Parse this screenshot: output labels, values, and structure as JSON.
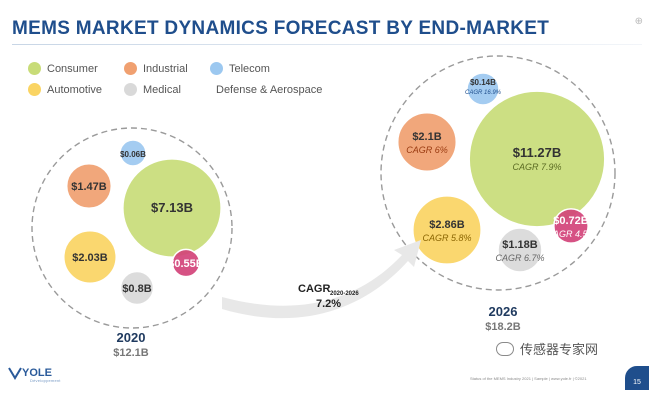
{
  "title": "MEMS MARKET DYNAMICS FORECAST BY END-MARKET",
  "legend": [
    {
      "name": "Consumer",
      "color": "#c8dc78"
    },
    {
      "name": "Industrial",
      "color": "#f0a070"
    },
    {
      "name": "Telecom",
      "color": "#9cc8f0"
    },
    {
      "name": "Automotive",
      "color": "#fad463"
    },
    {
      "name": "Medical",
      "color": "#d9d9d9"
    },
    {
      "name": "Defense & Aerospace",
      "color": "#d3437a"
    }
  ],
  "chart_data": {
    "type": "bubble",
    "title": "MEMS MARKET DYNAMICS FORECAST BY END-MARKET",
    "groups": [
      {
        "year": "2020",
        "total": "$12.1B",
        "bubbles": [
          {
            "segment": "Consumer",
            "value_label": "$7.13B",
            "value": 7.13,
            "cagr": ""
          },
          {
            "segment": "Industrial",
            "value_label": "$1.47B",
            "value": 1.47,
            "cagr": ""
          },
          {
            "segment": "Telecom",
            "value_label": "$0.06B",
            "value": 0.06,
            "cagr": ""
          },
          {
            "segment": "Automotive",
            "value_label": "$2.03B",
            "value": 2.03,
            "cagr": ""
          },
          {
            "segment": "Medical",
            "value_label": "$0.8B",
            "value": 0.8,
            "cagr": ""
          },
          {
            "segment": "Defense & Aerospace",
            "value_label": "$0.55B",
            "value": 0.55,
            "cagr": ""
          }
        ]
      },
      {
        "year": "2026",
        "total": "$18.2B",
        "bubbles": [
          {
            "segment": "Consumer",
            "value_label": "$11.27B",
            "value": 11.27,
            "cagr": "CAGR 7.9%"
          },
          {
            "segment": "Industrial",
            "value_label": "$2.1B",
            "value": 2.1,
            "cagr": "CAGR 6%"
          },
          {
            "segment": "Telecom",
            "value_label": "$0.14B",
            "value": 0.14,
            "cagr": "CAGR 16.9%"
          },
          {
            "segment": "Automotive",
            "value_label": "$2.86B",
            "value": 2.86,
            "cagr": "CAGR 5.8%"
          },
          {
            "segment": "Medical",
            "value_label": "$1.18B",
            "value": 1.18,
            "cagr": "CAGR 6.7%"
          },
          {
            "segment": "Defense & Aerospace",
            "value_label": "$0.72B",
            "value": 0.72,
            "cagr": "CAGR 4.5%"
          }
        ]
      }
    ],
    "arrow": {
      "label": "CAGR",
      "subscript": "2020-2026",
      "value": "7.2%"
    }
  },
  "footer": {
    "logo_text": "YOLE",
    "logo_sub": "Développement",
    "source": "Status of the MEMS Industry 2021 | Sample | www.yole.fr | ©2021",
    "page_number": "15",
    "watermark": "传感器专家网"
  }
}
